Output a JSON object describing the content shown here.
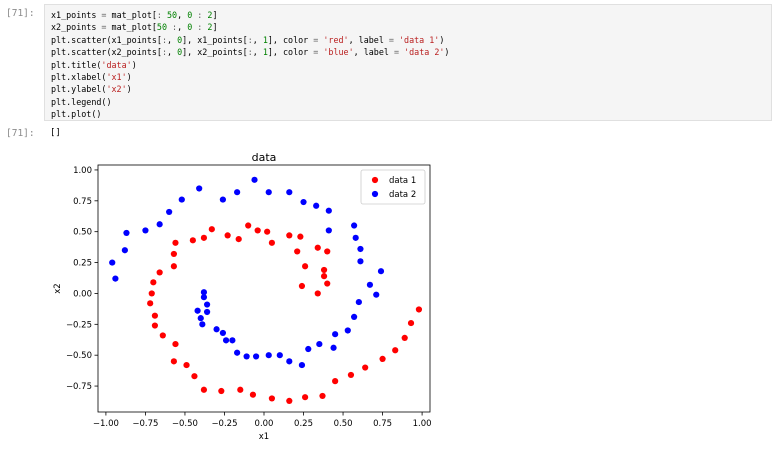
{
  "notebook": {
    "input_prompt": "[71]:",
    "output_prompt": "[71]:",
    "output_text": "[]"
  },
  "code_lines": [
    [
      [
        "x1_points",
        "plain"
      ],
      [
        " = ",
        "op"
      ],
      [
        "mat_plot[",
        "plain"
      ],
      [
        ":",
        "op"
      ],
      [
        " 50",
        "num"
      ],
      [
        ", ",
        "plain"
      ],
      [
        "0",
        "num"
      ],
      [
        " : ",
        "op"
      ],
      [
        "2",
        "num"
      ],
      [
        "]",
        "plain"
      ]
    ],
    [
      [
        "x2_points",
        "plain"
      ],
      [
        " = ",
        "op"
      ],
      [
        "mat_plot[",
        "plain"
      ],
      [
        "50",
        "num"
      ],
      [
        " :",
        "op"
      ],
      [
        ", ",
        "plain"
      ],
      [
        "0",
        "num"
      ],
      [
        " : ",
        "op"
      ],
      [
        "2",
        "num"
      ],
      [
        "]",
        "plain"
      ]
    ],
    [
      [
        "plt.scatter(x1_points[",
        "plain"
      ],
      [
        ":",
        "op"
      ],
      [
        ", ",
        "plain"
      ],
      [
        "0",
        "num"
      ],
      [
        "], x1_points[",
        "plain"
      ],
      [
        ":",
        "op"
      ],
      [
        ", ",
        "plain"
      ],
      [
        "1",
        "num"
      ],
      [
        "], color ",
        "plain"
      ],
      [
        "=",
        "op"
      ],
      [
        " ",
        "plain"
      ],
      [
        "'red'",
        "str"
      ],
      [
        ", label ",
        "plain"
      ],
      [
        "=",
        "op"
      ],
      [
        " ",
        "plain"
      ],
      [
        "'data 1'",
        "str"
      ],
      [
        ")",
        "plain"
      ]
    ],
    [
      [
        "plt.scatter(x2_points[",
        "plain"
      ],
      [
        ":",
        "op"
      ],
      [
        ", ",
        "plain"
      ],
      [
        "0",
        "num"
      ],
      [
        "], x2_points[",
        "plain"
      ],
      [
        ":",
        "op"
      ],
      [
        ", ",
        "plain"
      ],
      [
        "1",
        "num"
      ],
      [
        "], color ",
        "plain"
      ],
      [
        "=",
        "op"
      ],
      [
        " ",
        "plain"
      ],
      [
        "'blue'",
        "str"
      ],
      [
        ", label ",
        "plain"
      ],
      [
        "=",
        "op"
      ],
      [
        " ",
        "plain"
      ],
      [
        "'data 2'",
        "str"
      ],
      [
        ")",
        "plain"
      ]
    ],
    [
      [
        "plt.title(",
        "plain"
      ],
      [
        "'data'",
        "str"
      ],
      [
        ")",
        "plain"
      ]
    ],
    [
      [
        "plt.xlabel(",
        "plain"
      ],
      [
        "'x1'",
        "str"
      ],
      [
        ")",
        "plain"
      ]
    ],
    [
      [
        "plt.ylabel(",
        "plain"
      ],
      [
        "'x2'",
        "str"
      ],
      [
        ")",
        "plain"
      ]
    ],
    [
      [
        "plt.legend()",
        "plain"
      ]
    ],
    [
      [
        "plt.plot()",
        "plain"
      ]
    ]
  ],
  "chart_data": {
    "type": "scatter",
    "title": "data",
    "xlabel": "x1",
    "ylabel": "x2",
    "xlim": [
      -1.05,
      1.05
    ],
    "ylim": [
      -0.96,
      1.04
    ],
    "xticks": [
      -1.0,
      -0.75,
      -0.5,
      -0.25,
      0.0,
      0.25,
      0.5,
      0.75,
      1.0
    ],
    "yticks": [
      -0.75,
      -0.5,
      -0.25,
      0.0,
      0.25,
      0.5,
      0.75,
      1.0
    ],
    "xtick_labels": [
      "−1.00",
      "−0.75",
      "−0.50",
      "−0.25",
      "0.00",
      "0.25",
      "0.50",
      "0.75",
      "1.00"
    ],
    "ytick_labels": [
      "−0.75",
      "−0.50",
      "−0.25",
      "0.00",
      "0.25",
      "0.50",
      "0.75",
      "1.00"
    ],
    "legend": "top-right",
    "grid": false,
    "series": [
      {
        "name": "data 1",
        "color": "#ff0000",
        "points": [
          [
            0.98,
            -0.13
          ],
          [
            0.93,
            -0.24
          ],
          [
            0.89,
            -0.36
          ],
          [
            0.83,
            -0.46
          ],
          [
            0.75,
            -0.53
          ],
          [
            0.64,
            -0.6
          ],
          [
            0.55,
            -0.66
          ],
          [
            0.45,
            -0.71
          ],
          [
            0.37,
            -0.83
          ],
          [
            0.26,
            -0.84
          ],
          [
            0.16,
            -0.87
          ],
          [
            0.05,
            -0.85
          ],
          [
            -0.07,
            -0.82
          ],
          [
            -0.15,
            -0.78
          ],
          [
            -0.27,
            -0.79
          ],
          [
            -0.38,
            -0.78
          ],
          [
            -0.44,
            -0.67
          ],
          [
            -0.49,
            -0.58
          ],
          [
            -0.57,
            -0.55
          ],
          [
            -0.56,
            -0.41
          ],
          [
            -0.64,
            -0.34
          ],
          [
            -0.69,
            -0.26
          ],
          [
            -0.69,
            -0.18
          ],
          [
            -0.72,
            -0.08
          ],
          [
            -0.71,
            0.0
          ],
          [
            -0.7,
            0.09
          ],
          [
            -0.66,
            0.17
          ],
          [
            -0.57,
            0.22
          ],
          [
            -0.57,
            0.32
          ],
          [
            -0.56,
            0.41
          ],
          [
            -0.45,
            0.43
          ],
          [
            -0.38,
            0.45
          ],
          [
            -0.33,
            0.52
          ],
          [
            -0.23,
            0.47
          ],
          [
            -0.16,
            0.44
          ],
          [
            -0.1,
            0.55
          ],
          [
            -0.04,
            0.51
          ],
          [
            0.02,
            0.5
          ],
          [
            0.05,
            0.41
          ],
          [
            0.16,
            0.47
          ],
          [
            0.23,
            0.46
          ],
          [
            0.21,
            0.34
          ],
          [
            0.26,
            0.22
          ],
          [
            0.34,
            0.37
          ],
          [
            0.38,
            0.19
          ],
          [
            0.38,
            0.14
          ],
          [
            0.4,
            0.08
          ],
          [
            0.34,
            0.0
          ],
          [
            0.4,
            0.34
          ],
          [
            0.24,
            0.06
          ]
        ]
      },
      {
        "name": "data 2",
        "color": "#0000ff",
        "points": [
          [
            -0.96,
            0.25
          ],
          [
            -0.94,
            0.12
          ],
          [
            -0.88,
            0.35
          ],
          [
            -0.87,
            0.49
          ],
          [
            -0.75,
            0.51
          ],
          [
            -0.66,
            0.56
          ],
          [
            -0.6,
            0.66
          ],
          [
            -0.52,
            0.76
          ],
          [
            -0.41,
            0.85
          ],
          [
            -0.26,
            0.76
          ],
          [
            -0.17,
            0.82
          ],
          [
            -0.06,
            0.92
          ],
          [
            0.03,
            0.82
          ],
          [
            0.16,
            0.82
          ],
          [
            0.25,
            0.74
          ],
          [
            0.33,
            0.71
          ],
          [
            0.41,
            0.67
          ],
          [
            0.41,
            0.51
          ],
          [
            0.57,
            0.55
          ],
          [
            0.58,
            0.45
          ],
          [
            0.61,
            0.36
          ],
          [
            0.61,
            0.26
          ],
          [
            0.67,
            0.07
          ],
          [
            0.74,
            0.18
          ],
          [
            0.71,
            -0.01
          ],
          [
            0.6,
            -0.07
          ],
          [
            0.57,
            -0.19
          ],
          [
            0.53,
            -0.3
          ],
          [
            0.45,
            -0.33
          ],
          [
            0.44,
            -0.44
          ],
          [
            0.35,
            -0.41
          ],
          [
            0.28,
            -0.45
          ],
          [
            0.24,
            -0.58
          ],
          [
            0.16,
            -0.55
          ],
          [
            0.1,
            -0.5
          ],
          [
            0.03,
            -0.5
          ],
          [
            -0.05,
            -0.51
          ],
          [
            -0.11,
            -0.51
          ],
          [
            -0.17,
            -0.48
          ],
          [
            -0.2,
            -0.38
          ],
          [
            -0.24,
            -0.38
          ],
          [
            -0.26,
            -0.32
          ],
          [
            -0.3,
            -0.29
          ],
          [
            -0.39,
            -0.25
          ],
          [
            -0.4,
            -0.2
          ],
          [
            -0.42,
            -0.14
          ],
          [
            -0.36,
            -0.15
          ],
          [
            -0.36,
            -0.09
          ],
          [
            -0.38,
            -0.03
          ],
          [
            -0.38,
            0.01
          ]
        ]
      }
    ]
  }
}
